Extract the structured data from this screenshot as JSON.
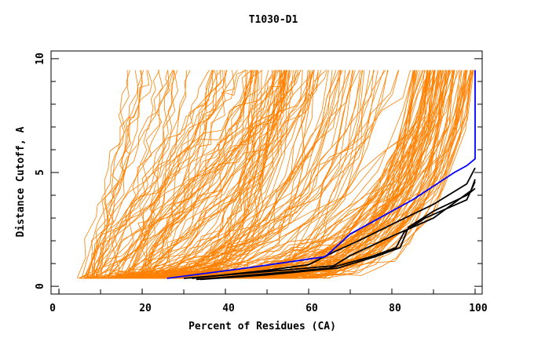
{
  "chart_data": {
    "type": "line",
    "title": "T1030-D1",
    "xlabel": "Percent of Residues (CA)",
    "ylabel": "Distance Cutoff, A",
    "xlim": [
      -1.9,
      101.7
    ],
    "ylim": [
      -0.34,
      10.34
    ],
    "xticks": [
      0,
      20,
      40,
      60,
      80,
      100
    ],
    "yticks": [
      0,
      5,
      10
    ],
    "grid": false,
    "colors": {
      "models": "#ff8000",
      "highlight": "#0000ff",
      "reference": "#000000"
    },
    "orange_series_count": 220,
    "highlight_series": {
      "name": "blue",
      "x": [
        26,
        45,
        64,
        67,
        70,
        75,
        80,
        85,
        90,
        95,
        98,
        100,
        100
      ],
      "y": [
        0.35,
        0.8,
        1.3,
        1.8,
        2.3,
        2.8,
        3.3,
        3.8,
        4.4,
        5.0,
        5.3,
        5.6,
        9.5
      ]
    },
    "black_series": [
      {
        "x": [
          32,
          50,
          60,
          66,
          72,
          82,
          90,
          98,
          100
        ],
        "y": [
          0.35,
          0.7,
          0.95,
          1.5,
          2.0,
          2.9,
          3.6,
          4.5,
          5.2
        ]
      },
      {
        "x": [
          33,
          50,
          65,
          75,
          81,
          83,
          88,
          98,
          100
        ],
        "y": [
          0.3,
          0.55,
          0.8,
          1.3,
          1.7,
          2.4,
          3.0,
          3.8,
          4.6
        ]
      },
      {
        "x": [
          34,
          50,
          67,
          76,
          82,
          84,
          90,
          98,
          100
        ],
        "y": [
          0.3,
          0.5,
          0.8,
          1.3,
          1.7,
          2.6,
          3.3,
          4.0,
          4.3
        ]
      },
      {
        "x": [
          30,
          50,
          66,
          70,
          80,
          90,
          99,
          100
        ],
        "y": [
          0.35,
          0.65,
          0.9,
          1.35,
          2.2,
          3.0,
          4.2,
          4.7
        ]
      }
    ]
  }
}
